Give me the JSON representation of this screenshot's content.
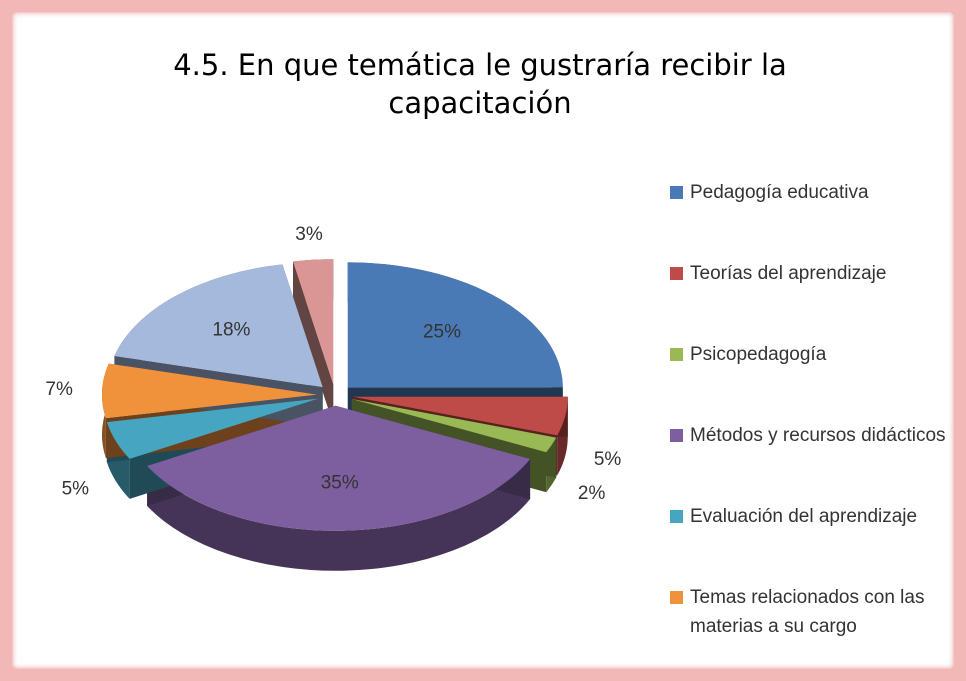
{
  "chart_data": {
    "type": "pie3d",
    "title": "4.5. En que temática le gustraría recibir la capacitación",
    "categories": [
      "Pedagogía educativa",
      "Teorías del aprendizaje",
      "Psicopedagogía",
      "Métodos y recursos didácticos",
      "Evaluación del aprendizaje",
      "Temas relacionados con las materias a su cargo",
      null,
      null
    ],
    "values": [
      25,
      5,
      2,
      35,
      5,
      7,
      18,
      3
    ],
    "value_labels": [
      "25%",
      "5%",
      "2%",
      "35%",
      "5%",
      "7%",
      "18%",
      "3%"
    ],
    "colors": [
      "#4a7ab5",
      "#be4b48",
      "#98b954",
      "#7d5fa0",
      "#46a5c0",
      "#f0913c",
      "#a5b9dc",
      "#d99694"
    ],
    "legend": "right"
  }
}
